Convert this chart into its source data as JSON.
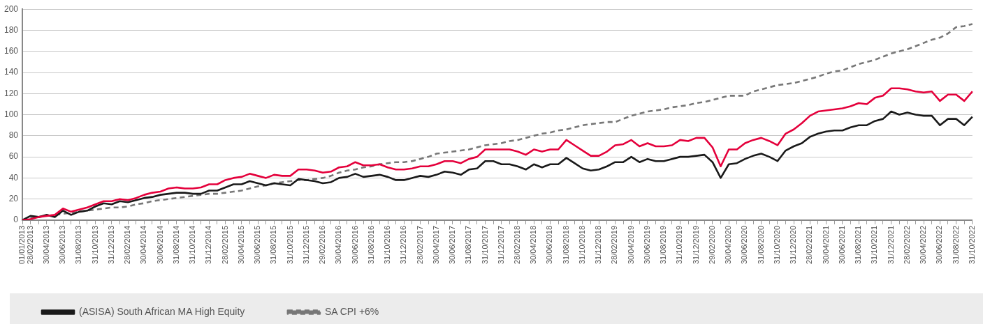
{
  "chart_data": {
    "type": "line",
    "categories": [
      "01/01/2013",
      "28/02/2013",
      null,
      "30/04/2013",
      null,
      "30/06/2013",
      null,
      "31/08/2013",
      null,
      "31/10/2013",
      null,
      "31/12/2013",
      null,
      "28/02/2014",
      null,
      "30/04/2014",
      null,
      "30/06/2014",
      null,
      "31/08/2014",
      null,
      "31/10/2014",
      null,
      "31/12/2014",
      null,
      "28/02/2015",
      null,
      "30/04/2015",
      null,
      "30/06/2015",
      null,
      "31/08/2015",
      null,
      "31/10/2015",
      null,
      "31/12/2015",
      null,
      "29/02/2016",
      null,
      "30/04/2016",
      null,
      "30/06/2016",
      null,
      "31/08/2016",
      null,
      "31/10/2016",
      null,
      "31/12/2016",
      null,
      "28/02/2017",
      null,
      "30/04/2017",
      null,
      "30/06/2017",
      null,
      "31/08/2017",
      null,
      "31/10/2017",
      null,
      "31/12/2017",
      null,
      "28/02/2018",
      null,
      "30/04/2018",
      null,
      "30/06/2018",
      null,
      "31/08/2018",
      null,
      "31/10/2018",
      null,
      "31/12/2018",
      null,
      "28/02/2019",
      null,
      "30/04/2019",
      null,
      "30/06/2019",
      null,
      "31/08/2019",
      null,
      "31/10/2019",
      null,
      "31/12/2019",
      null,
      "29/02/2020",
      null,
      "30/04/2020",
      null,
      "30/06/2020",
      null,
      "31/08/2020",
      null,
      "31/10/2020",
      null,
      "31/12/2020",
      null,
      "28/02/2021",
      null,
      "30/04/2021",
      null,
      "30/06/2021",
      null,
      "31/08/2021",
      null,
      "31/10/2021",
      null,
      "31/12/2021",
      null,
      "28/02/2022",
      null,
      "30/04/2022",
      null,
      "30/06/2022",
      null,
      "31/08/2022",
      null,
      "31/10/2022"
    ],
    "series": [
      {
        "color": "#e4003b",
        "line_style": "solid",
        "values": [
          0,
          1,
          3,
          4,
          5,
          11,
          8,
          10,
          12,
          15,
          18,
          18,
          20,
          19,
          21,
          24,
          26,
          27,
          30,
          31,
          30,
          30,
          31,
          34,
          34,
          38,
          40,
          41,
          44,
          42,
          40,
          43,
          42,
          42,
          48,
          48,
          47,
          45,
          46,
          50,
          51,
          55,
          52,
          52,
          53,
          50,
          48,
          48,
          49,
          51,
          51,
          53,
          56,
          56,
          54,
          58,
          60,
          67,
          67,
          67,
          67,
          65,
          62,
          67,
          65,
          67,
          67,
          76,
          71,
          66,
          61,
          61,
          65,
          71,
          72,
          76,
          70,
          73,
          70,
          70,
          71,
          76,
          75,
          78,
          78,
          69,
          51,
          67,
          67,
          73,
          76,
          78,
          75,
          71,
          82,
          86,
          92,
          99,
          103,
          104,
          105,
          106,
          108,
          111,
          110,
          116,
          118,
          125,
          125,
          124,
          122,
          121,
          122,
          113,
          119,
          119,
          113,
          122
        ]
      },
      {
        "name": "(ASISA) South African MA High Equity",
        "color": "#1a1a1a",
        "line_style": "solid",
        "values": [
          0,
          4,
          3,
          5,
          3,
          9,
          5,
          8,
          9,
          13,
          16,
          15,
          18,
          17,
          19,
          21,
          22,
          24,
          25,
          26,
          26,
          25,
          25,
          28,
          28,
          31,
          34,
          34,
          37,
          35,
          33,
          35,
          34,
          33,
          39,
          38,
          37,
          35,
          36,
          40,
          41,
          44,
          41,
          42,
          43,
          41,
          38,
          38,
          40,
          42,
          41,
          43,
          46,
          45,
          43,
          48,
          49,
          56,
          56,
          53,
          53,
          51,
          48,
          53,
          50,
          53,
          53,
          59,
          54,
          49,
          47,
          48,
          51,
          55,
          55,
          60,
          55,
          58,
          56,
          56,
          58,
          60,
          60,
          61,
          62,
          55,
          40,
          53,
          54,
          58,
          61,
          63,
          60,
          56,
          66,
          70,
          73,
          79,
          82,
          84,
          85,
          85,
          88,
          90,
          90,
          94,
          96,
          103,
          100,
          102,
          100,
          99,
          99,
          90,
          96,
          96,
          90,
          98
        ]
      },
      {
        "name": "SA CPI +6%",
        "color": "#777777",
        "line_style": "dashed",
        "values": [
          0,
          2,
          3,
          4,
          5,
          6,
          7,
          8,
          9,
          10,
          11,
          12,
          12,
          13,
          15,
          16,
          18,
          19,
          20,
          21,
          22,
          23,
          24,
          25,
          25,
          26,
          27,
          28,
          30,
          32,
          33,
          35,
          36,
          37,
          38,
          38,
          39,
          40,
          42,
          45,
          47,
          48,
          50,
          51,
          53,
          54,
          55,
          55,
          56,
          58,
          60,
          63,
          64,
          65,
          66,
          67,
          69,
          71,
          72,
          73,
          75,
          76,
          78,
          80,
          82,
          83,
          85,
          86,
          88,
          90,
          91,
          92,
          93,
          93,
          96,
          99,
          101,
          103,
          104,
          105,
          107,
          108,
          109,
          111,
          112,
          114,
          116,
          118,
          118,
          118,
          122,
          124,
          126,
          128,
          129,
          130,
          132,
          134,
          136,
          139,
          141,
          142,
          145,
          148,
          150,
          152,
          155,
          158,
          160,
          162,
          165,
          168,
          171,
          173,
          177,
          183,
          184,
          186
        ]
      }
    ],
    "ylim": [
      0,
      200
    ],
    "yticks": [
      0,
      20,
      40,
      60,
      80,
      100,
      120,
      140,
      160,
      180,
      200
    ],
    "grid": "y",
    "legend": "bottom",
    "marker": "none"
  }
}
